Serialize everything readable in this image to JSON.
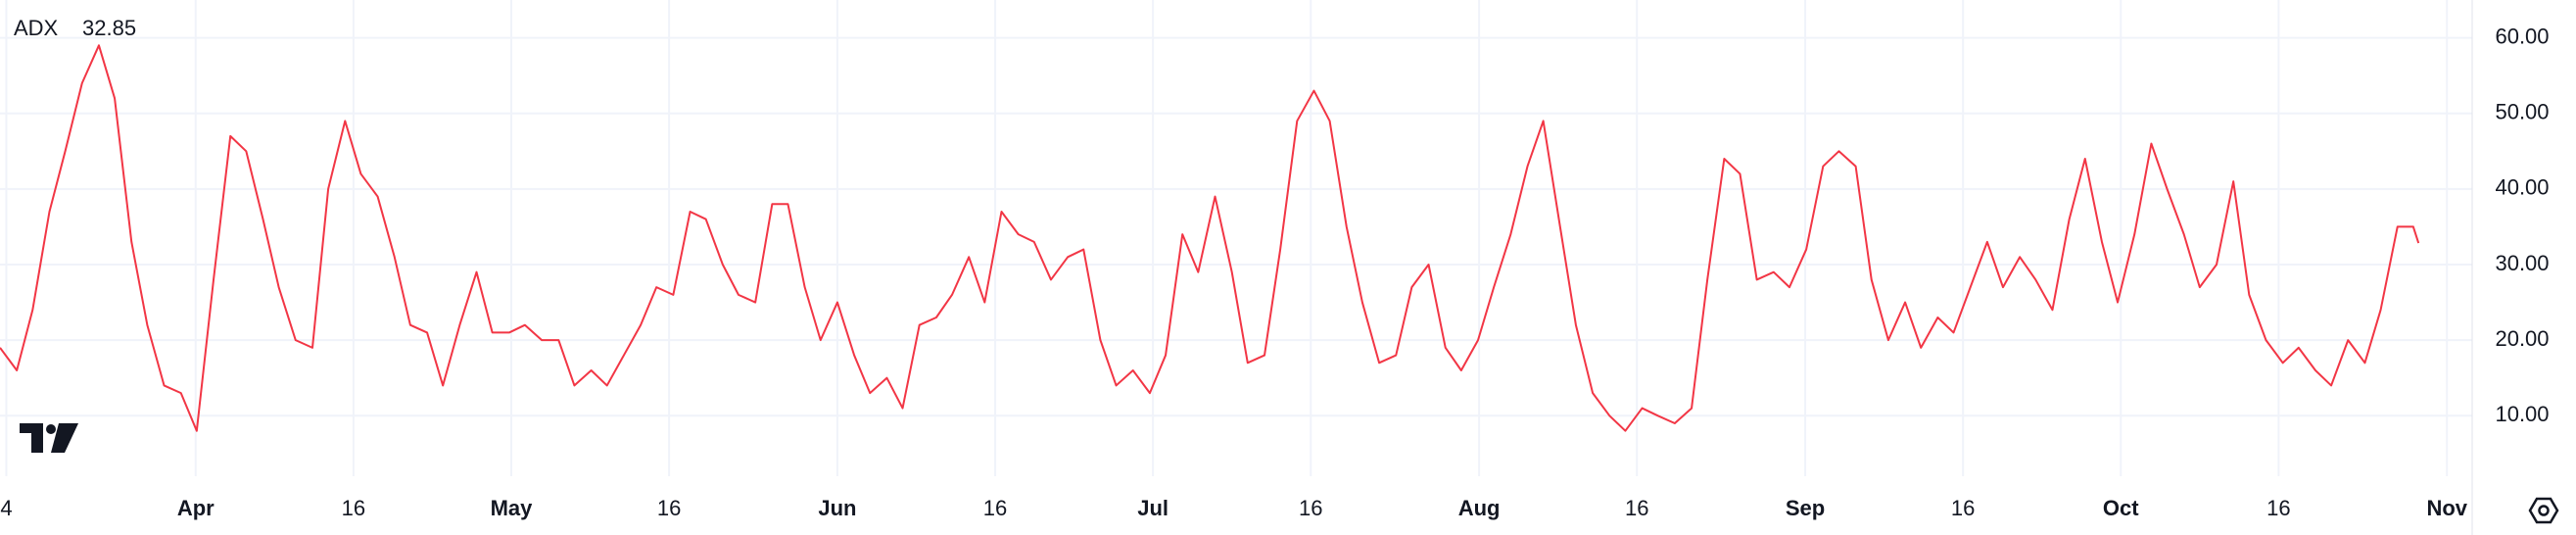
{
  "chart_data": {
    "type": "line",
    "series": [
      {
        "name": "ADX",
        "color": "#f23645",
        "x": [
          73.4,
          75.0,
          76.5,
          78.1,
          79.6,
          81.2,
          82.8,
          84.3,
          85.9,
          87.4,
          89.0,
          90.6,
          92.1,
          93.7,
          95.3,
          96.8,
          98.4,
          99.9,
          101.5,
          103.1,
          104.6,
          106.2,
          107.7,
          109.3,
          110.9,
          112.4,
          114.0,
          115.5,
          117.1,
          118.7,
          120.2,
          121.8,
          123.3,
          124.9,
          126.5,
          128.0,
          129.6,
          131.1,
          132.7,
          134.3,
          135.8,
          137.4,
          139.0,
          140.5,
          142.1,
          143.6,
          145.2,
          146.8,
          148.3,
          149.9,
          151.4,
          153.0,
          154.6,
          156.1,
          157.7,
          159.2,
          160.8,
          162.4,
          163.9,
          165.5,
          167.0,
          168.6,
          170.2,
          171.7,
          173.3,
          174.9,
          176.4,
          178.0,
          179.5,
          181.1,
          182.7,
          184.2,
          185.8,
          187.3,
          188.9,
          190.5,
          192.0,
          193.6,
          195.1,
          196.7,
          198.3,
          199.8,
          201.4,
          202.9,
          204.5,
          206.1,
          207.6,
          209.2,
          210.8,
          212.3,
          213.9,
          215.4,
          217.0,
          218.6,
          220.1,
          221.7,
          223.2,
          224.8,
          226.4,
          227.9,
          229.5,
          231.0,
          232.6,
          234.2,
          235.7,
          237.3,
          238.8,
          240.4,
          242.0,
          243.5,
          245.1,
          246.7,
          248.2,
          249.8,
          251.3,
          252.9,
          254.5,
          256.0,
          257.6,
          259.1,
          260.7,
          262.3,
          263.8,
          265.4,
          266.9,
          268.5,
          270.1,
          271.6,
          273.2,
          274.7,
          276.3,
          277.9,
          279.4,
          281.0,
          282.5,
          284.1,
          285.7,
          287.2,
          288.8,
          290.4,
          291.9,
          293.5,
          295.0,
          296.6,
          298.2,
          299.7,
          301.3,
          302.8,
          303.3
        ],
        "values": [
          19,
          16,
          24,
          37,
          45,
          54,
          59,
          52,
          33,
          22,
          14,
          13,
          8,
          28,
          47,
          45,
          36,
          27,
          20,
          19,
          40,
          49,
          42,
          39,
          31,
          22,
          21,
          14,
          22,
          29,
          21,
          21,
          22,
          20,
          20,
          14,
          16,
          14,
          18,
          22,
          27,
          26,
          37,
          36,
          30,
          26,
          25,
          38,
          38,
          27,
          20,
          25,
          18,
          13,
          15,
          11,
          22,
          23,
          26,
          31,
          25,
          37,
          34,
          33,
          28,
          31,
          32,
          20,
          14,
          16,
          13,
          18,
          34,
          29,
          39,
          29,
          17,
          18,
          32,
          49,
          53,
          49,
          35,
          25,
          17,
          18,
          27,
          30,
          19,
          16,
          20,
          27,
          34,
          43,
          49,
          35,
          22,
          13,
          10,
          8,
          11,
          10,
          9,
          11,
          28,
          44,
          42,
          28,
          29,
          27,
          32,
          43,
          45,
          43,
          28,
          20,
          25,
          19,
          23,
          21,
          27,
          33,
          27,
          31,
          28,
          24,
          36,
          44,
          33,
          25,
          34,
          46,
          40,
          34,
          27,
          30,
          41,
          26,
          20,
          17,
          19,
          16,
          14,
          20,
          17,
          24,
          35,
          35,
          32.85
        ]
      }
    ],
    "current_value": 32.85,
    "xlim": [
      73.4,
      308.4
    ],
    "xticks": [
      {
        "value": 74,
        "label": "4"
      },
      {
        "value": 92,
        "label": "Apr"
      },
      {
        "value": 107,
        "label": "16"
      },
      {
        "value": 122,
        "label": "May"
      },
      {
        "value": 137,
        "label": "16"
      },
      {
        "value": 153,
        "label": "Jun"
      },
      {
        "value": 168,
        "label": "16"
      },
      {
        "value": 183,
        "label": "Jul"
      },
      {
        "value": 198,
        "label": "16"
      },
      {
        "value": 214,
        "label": "Aug"
      },
      {
        "value": 229,
        "label": "16"
      },
      {
        "value": 245,
        "label": "Sep"
      },
      {
        "value": 260,
        "label": "16"
      },
      {
        "value": 275,
        "label": "Oct"
      },
      {
        "value": 290,
        "label": "16"
      },
      {
        "value": 306,
        "label": "Nov"
      }
    ],
    "ylim": [
      2,
      65
    ],
    "yticks": [
      {
        "value": 10,
        "label": "10.00"
      },
      {
        "value": 20,
        "label": "20.00"
      },
      {
        "value": 30,
        "label": "30.00"
      },
      {
        "value": 40,
        "label": "40.00"
      },
      {
        "value": 50,
        "label": "50.00"
      },
      {
        "value": 60,
        "label": "60.00"
      }
    ],
    "grid": true
  }
}
